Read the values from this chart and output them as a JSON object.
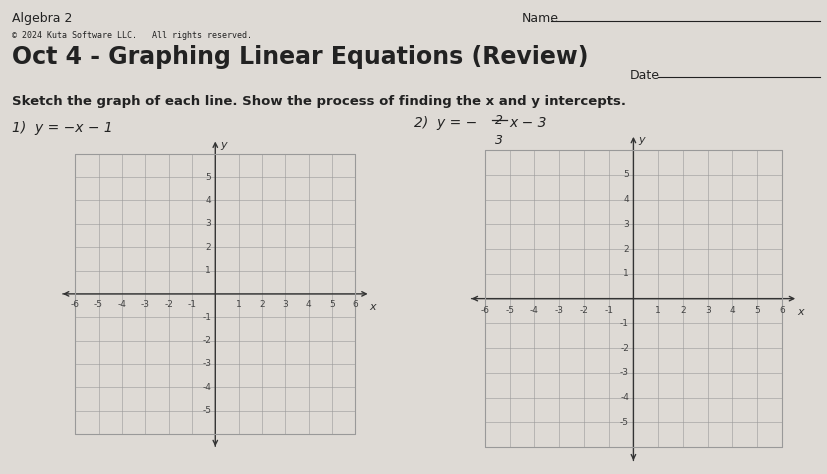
{
  "background_color": "#dedad5",
  "title_line1": "Algebra 2",
  "title_line2": "© 2024 Kuta Software LLC.   All rights reserved.",
  "title_main": "Oct 4 - Graphing Linear Equations (Review)",
  "name_label": "Name",
  "date_label": "Date",
  "instruction": "Sketch the graph of each line. Show the process of finding the x and y intercepts.",
  "problem1_label": "1)  y = −x − 1",
  "problem2_prefix": "2)  y = −",
  "problem2_num": "2",
  "problem2_den": "3",
  "problem2_suffix": "x − 3",
  "grid_color": "#999999",
  "axis_color": "#333333",
  "text_color": "#222222",
  "tick_label_color": "#444444",
  "xlim": [
    -6.7,
    6.7
  ],
  "ylim": [
    -6.7,
    6.7
  ],
  "tick_values_x": [
    -6,
    -5,
    -4,
    -3,
    -2,
    -1,
    1,
    2,
    3,
    4,
    5,
    6
  ],
  "tick_values_y": [
    -5,
    -4,
    -3,
    -2,
    -1,
    1,
    2,
    3,
    4,
    5
  ],
  "label_fontsize": 6.5,
  "title_fontsize": 17,
  "subtitle_fontsize": 7,
  "problem_fontsize": 10,
  "instruction_fontsize": 9.5
}
